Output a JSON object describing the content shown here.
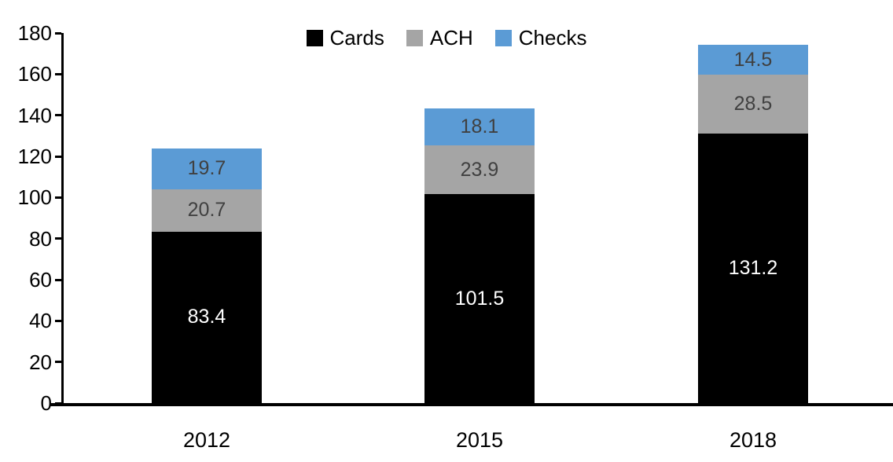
{
  "chart_data": {
    "type": "bar",
    "stacked": true,
    "title": "",
    "xlabel": "",
    "ylabel": "",
    "categories": [
      "2012",
      "2015",
      "2018"
    ],
    "series": [
      {
        "name": "Cards",
        "color": "#000000",
        "label_color": "#FFFFFF",
        "values": [
          83.4,
          101.5,
          131.2
        ]
      },
      {
        "name": "ACH",
        "color": "#A5A5A5",
        "label_color": "#404040",
        "values": [
          20.7,
          23.9,
          28.5
        ]
      },
      {
        "name": "Checks",
        "color": "#5B9BD5",
        "label_color": "#404040",
        "values": [
          19.7,
          18.1,
          14.5
        ]
      }
    ],
    "totals": [
      123.8,
      143.5,
      174.2
    ],
    "ylim": [
      0,
      180
    ],
    "ytick_step": 20,
    "yticks": [
      0,
      20,
      40,
      60,
      80,
      100,
      120,
      140,
      160,
      180
    ],
    "legend_position": "top",
    "legend_labels": [
      "Cards",
      "ACH",
      "Checks"
    ],
    "grid": false,
    "axis_color": "#000000",
    "background_color": "#FFFFFF"
  }
}
